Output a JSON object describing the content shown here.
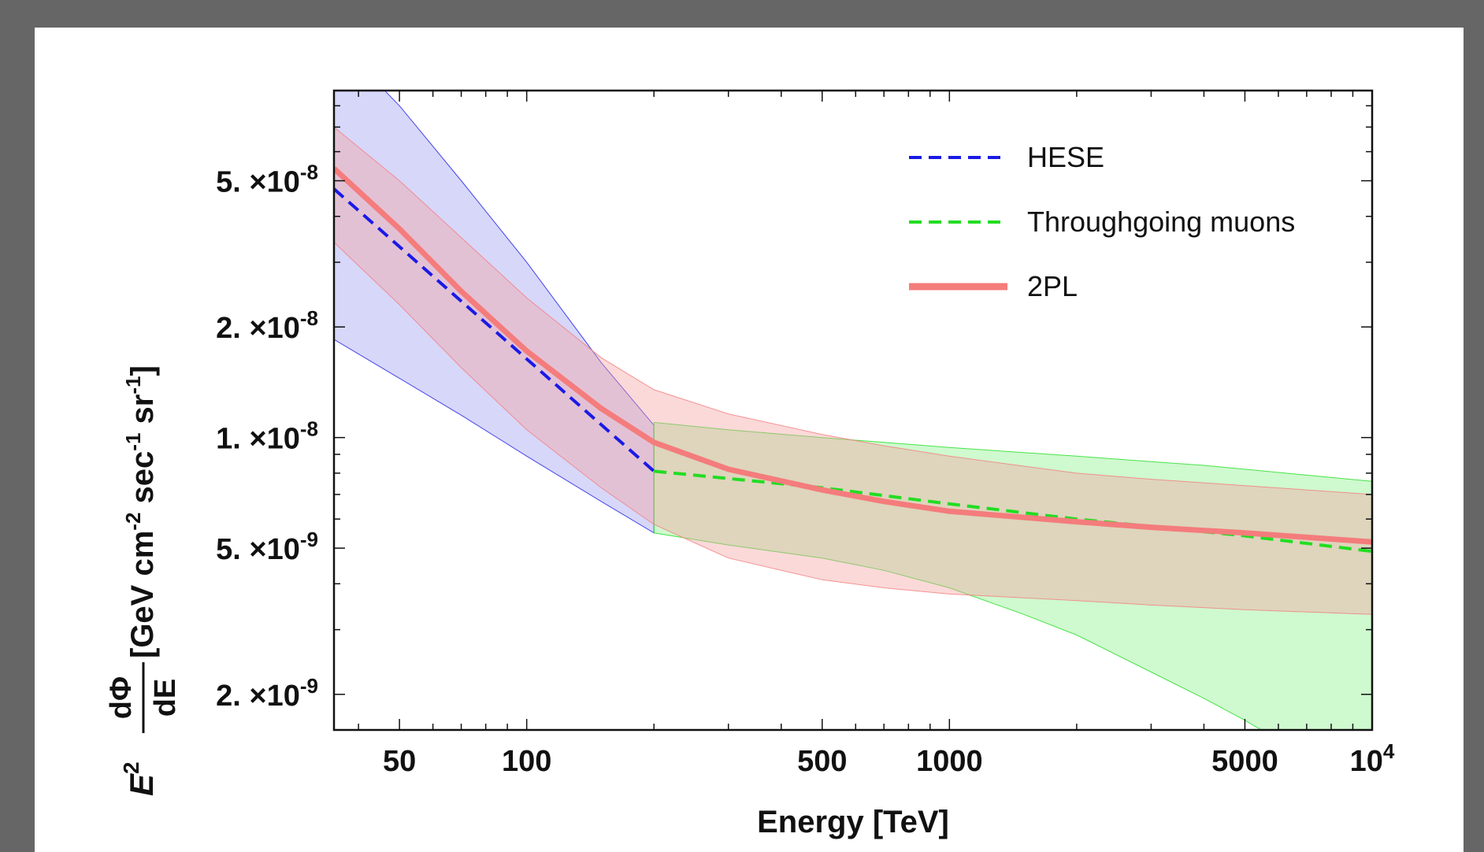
{
  "chart_data": {
    "type": "line",
    "title": "",
    "xlabel": "Energy [TeV]",
    "ylabel": {
      "prefix": "E",
      "prefix_sup": "2",
      "frac_num": "dΦ",
      "frac_den": "dE",
      "units": [
        "[GeV cm",
        "-2",
        " sec",
        "-1",
        " sr",
        "-1",
        "]"
      ]
    },
    "x_scale": "log",
    "y_scale": "log",
    "xlim": [
      35,
      10000
    ],
    "ylim": [
      1.6e-09,
      8.8e-08
    ],
    "x_ticks": [
      {
        "value": 50,
        "label": "50"
      },
      {
        "value": 100,
        "label": "100"
      },
      {
        "value": 500,
        "label": "500"
      },
      {
        "value": 1000,
        "label": "1000"
      },
      {
        "value": 5000,
        "label": "5000"
      },
      {
        "value": 10000,
        "label": "10",
        "sup": "4"
      }
    ],
    "y_ticks": [
      {
        "value": 2e-09,
        "mantissa": "2.",
        "exp": "-9"
      },
      {
        "value": 5e-09,
        "mantissa": "5.",
        "exp": "-9"
      },
      {
        "value": 1e-08,
        "mantissa": "1.",
        "exp": "-8"
      },
      {
        "value": 2e-08,
        "mantissa": "2.",
        "exp": "-8"
      },
      {
        "value": 5e-08,
        "mantissa": "5.",
        "exp": "-8"
      }
    ],
    "legend_position": "top-right",
    "series": [
      {
        "name": "HESE",
        "color": "#1a1ae6",
        "style": "dashed",
        "x": [
          35,
          200
        ],
        "y": [
          4.75e-08,
          8.1e-09
        ],
        "band": {
          "color": "#9a9af0",
          "x": [
            35,
            50,
            70,
            100,
            150,
            200
          ],
          "lower": [
            1.85e-08,
            1.45e-08,
            1.15e-08,
            8.9e-09,
            6.7e-09,
            5.5e-09
          ],
          "upper": [
            1.22e-07,
            8e-08,
            5e-08,
            3e-08,
            1.6e-08,
            1.08e-08
          ]
        }
      },
      {
        "name": "Throughgoing muons",
        "color": "#22dd22",
        "style": "dashed",
        "x": [
          200,
          500,
          1000,
          2000,
          5000,
          10000
        ],
        "y": [
          8.1e-09,
          7.3e-09,
          6.6e-09,
          6e-09,
          5.4e-09,
          4.9e-09
        ],
        "band": {
          "color": "#88f088",
          "x": [
            200,
            300,
            500,
            700,
            1000,
            1500,
            2000,
            3000,
            4000,
            5000,
            7000,
            10000
          ],
          "lower": [
            5.5e-09,
            5.1e-09,
            4.7e-09,
            4.35e-09,
            3.9e-09,
            3.3e-09,
            2.9e-09,
            2.3e-09,
            1.95e-09,
            1.7e-09,
            1.35e-09,
            1.05e-09
          ],
          "upper": [
            1.1e-08,
            1.05e-08,
            1e-08,
            9.7e-09,
            9.4e-09,
            9.1e-09,
            8.9e-09,
            8.6e-09,
            8.4e-09,
            8.2e-09,
            7.9e-09,
            7.6e-09
          ]
        }
      },
      {
        "name": "2PL",
        "color": "#f47c7c",
        "style": "solid",
        "x": [
          35,
          50,
          70,
          100,
          150,
          200,
          300,
          500,
          700,
          1000,
          2000,
          3000,
          5000,
          10000
        ],
        "y": [
          5.4e-08,
          3.7e-08,
          2.5e-08,
          1.72e-08,
          1.2e-08,
          9.7e-09,
          8.2e-09,
          7.2e-09,
          6.7e-09,
          6.3e-09,
          5.9e-09,
          5.7e-09,
          5.5e-09,
          5.2e-09
        ],
        "band": {
          "color": "#f5a0a0",
          "x": [
            35,
            50,
            70,
            100,
            150,
            200,
            300,
            500,
            700,
            1000,
            2000,
            3000,
            5000,
            10000
          ],
          "lower": [
            3.4e-08,
            2.3e-08,
            1.55e-08,
            1.05e-08,
            7.3e-09,
            5.8e-09,
            4.7e-09,
            4.1e-09,
            3.9e-09,
            3.75e-09,
            3.6e-09,
            3.5e-09,
            3.4e-09,
            3.3e-09
          ],
          "upper": [
            7e-08,
            5e-08,
            3.5e-08,
            2.4e-08,
            1.65e-08,
            1.35e-08,
            1.16e-08,
            1.02e-08,
            9.5e-09,
            8.9e-09,
            8e-09,
            7.7e-09,
            7.4e-09,
            7e-09
          ]
        }
      }
    ]
  }
}
